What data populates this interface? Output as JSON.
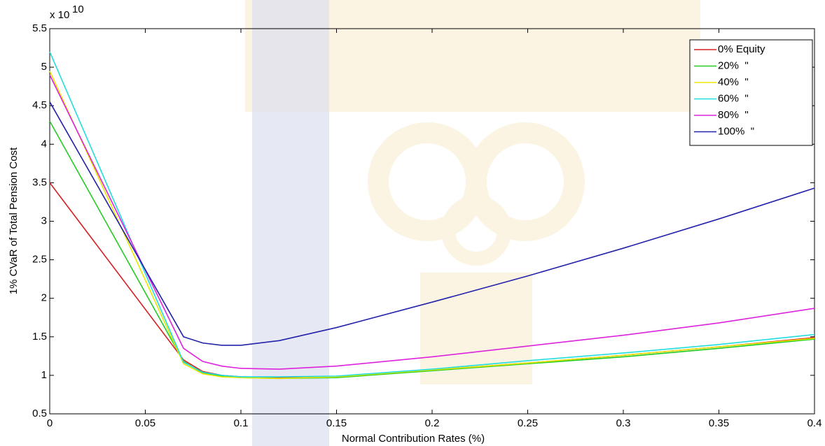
{
  "chart_data": {
    "type": "line",
    "xlabel": "Normal Contribution Rates (%)",
    "ylabel": "1% CVaR of Total Pension Cost",
    "y_multiplier": {
      "base": "x 10",
      "exponent": "10"
    },
    "x": [
      0,
      0.07,
      0.08,
      0.09,
      0.1,
      0.12,
      0.15,
      0.2,
      0.25,
      0.3,
      0.35,
      0.4
    ],
    "series": [
      {
        "name": "0% Equity",
        "color": "#d62020",
        "values": [
          3.5,
          1.2,
          1.05,
          1.0,
          0.98,
          0.97,
          0.98,
          1.07,
          1.16,
          1.26,
          1.37,
          1.49
        ]
      },
      {
        "name": "20%  \"",
        "color": "#22cc22",
        "values": [
          4.3,
          1.18,
          1.03,
          0.99,
          0.97,
          0.96,
          0.97,
          1.06,
          1.15,
          1.24,
          1.35,
          1.47
        ]
      },
      {
        "name": "40%  \"",
        "color": "#e8e800",
        "values": [
          4.95,
          1.15,
          1.02,
          0.98,
          0.97,
          0.96,
          0.98,
          1.07,
          1.16,
          1.26,
          1.37,
          1.48
        ]
      },
      {
        "name": "60%  \"",
        "color": "#22dddd",
        "values": [
          5.2,
          1.17,
          1.04,
          1.0,
          0.98,
          0.98,
          0.99,
          1.08,
          1.19,
          1.29,
          1.4,
          1.53
        ]
      },
      {
        "name": "80%  \"",
        "color": "#dd22dd",
        "values": [
          4.9,
          1.35,
          1.18,
          1.12,
          1.09,
          1.08,
          1.12,
          1.24,
          1.38,
          1.52,
          1.68,
          1.87
        ]
      },
      {
        "name": "100%  \"",
        "color": "#2222aa",
        "values": [
          4.55,
          1.5,
          1.42,
          1.39,
          1.39,
          1.45,
          1.62,
          1.95,
          2.29,
          2.65,
          3.03,
          3.43
        ]
      }
    ],
    "xlim": [
      0,
      0.4
    ],
    "xticks": [
      0,
      0.05,
      0.1,
      0.15,
      0.2,
      0.25,
      0.3,
      0.35,
      0.4
    ],
    "ylim": [
      0.5,
      5.5
    ],
    "yticks": [
      0.5,
      1,
      1.5,
      2,
      2.5,
      3,
      3.5,
      4,
      4.5,
      5,
      5.5
    ],
    "legend": "upper-right",
    "grid": false
  }
}
